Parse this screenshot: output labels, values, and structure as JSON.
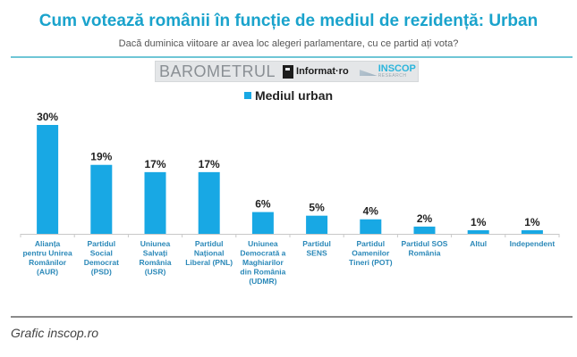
{
  "header": {
    "title": "Cum votează românii în funcție de mediul de rezidență: Urban",
    "subtitle": "Dacă duminica viitoare ar avea loc alegeri parlamentare, cu ce partid ați vota?"
  },
  "logos": {
    "barometrul": "BAROMETRUL",
    "informat": "Informat·ro",
    "inscop": "INSCOP",
    "inscop_sub": "RESEARCH"
  },
  "footer": {
    "source": "Grafic inscop.ro"
  },
  "colors": {
    "title": "#1aa3cc",
    "bar": "#18a8e4"
  },
  "chart_data": {
    "type": "bar",
    "title": "Cum votează românii în funcție de mediul de rezidență: Urban",
    "subtitle": "Dacă duminica viitoare ar avea loc alegeri parlamentare, cu ce partid ați vota?",
    "xlabel": "",
    "ylabel": "",
    "ylim": [
      0,
      30
    ],
    "grid": false,
    "legend": {
      "position": "top-center",
      "entries": [
        "Mediul urban"
      ]
    },
    "categories": [
      [
        "Alianța",
        "pentru Unirea",
        "Românilor",
        "(AUR)"
      ],
      [
        "Partidul",
        "Social",
        "Democrat",
        "(PSD)"
      ],
      [
        "Uniunea",
        "Salvați",
        "România",
        "(USR)"
      ],
      [
        "Partidul",
        "Național",
        "Liberal (PNL)"
      ],
      [
        "Uniunea",
        "Democrată a",
        "Maghiarilor",
        "din România",
        "(UDMR)"
      ],
      [
        "Partidul",
        "SENS"
      ],
      [
        "Partidul",
        "Oamenilor",
        "Tineri (POT)"
      ],
      [
        "Partidul SOS",
        "România"
      ],
      [
        "Altul"
      ],
      [
        "Independent"
      ]
    ],
    "series": [
      {
        "name": "Mediul urban",
        "values": [
          30,
          19,
          17,
          17,
          6,
          5,
          4,
          2,
          1,
          1
        ],
        "labels": [
          "30%",
          "19%",
          "17%",
          "17%",
          "6%",
          "5%",
          "4%",
          "2%",
          "1%",
          "1%"
        ]
      }
    ]
  }
}
